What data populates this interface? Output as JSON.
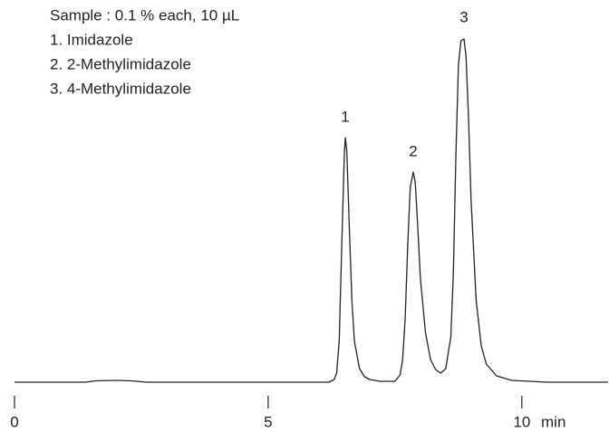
{
  "chart_data": {
    "type": "line",
    "notes": [
      "Sample : 0.1 % each, 10 µL",
      "1. Imidazole",
      "2. 2-Methylimidazole",
      "3. 4-Methylimidazole"
    ],
    "peak_labels": [
      "1",
      "2",
      "3"
    ],
    "x_label": "min",
    "x": [
      0,
      1.4,
      1.6,
      2.0,
      2.3,
      2.6,
      4.0,
      6.2,
      6.3,
      6.35,
      6.4,
      6.45,
      6.5,
      6.52,
      6.55,
      6.6,
      6.65,
      6.7,
      6.8,
      6.9,
      7.0,
      7.2,
      7.5,
      7.6,
      7.65,
      7.7,
      7.75,
      7.8,
      7.86,
      7.9,
      7.95,
      8.0,
      8.1,
      8.2,
      8.3,
      8.4,
      8.5,
      8.6,
      8.65,
      8.7,
      8.75,
      8.8,
      8.86,
      8.9,
      8.95,
      9.0,
      9.1,
      9.2,
      9.3,
      9.5,
      9.8,
      10.5,
      11.7
    ],
    "series": [
      {
        "color": "#222222",
        "values": [
          0,
          0,
          1.5,
          2,
          1.5,
          0,
          0,
          0,
          3,
          10,
          45,
          150,
          250,
          270,
          255,
          170,
          90,
          45,
          15,
          6,
          3,
          1,
          1,
          8,
          25,
          70,
          150,
          215,
          232,
          220,
          170,
          115,
          55,
          25,
          14,
          10,
          15,
          50,
          120,
          250,
          350,
          377,
          379,
          360,
          290,
          200,
          90,
          40,
          20,
          7,
          2,
          0,
          0
        ]
      }
    ],
    "xlim": [
      0,
      11.7
    ],
    "xticks": [
      0,
      5,
      10
    ],
    "ylim": [
      0,
      400
    ]
  }
}
